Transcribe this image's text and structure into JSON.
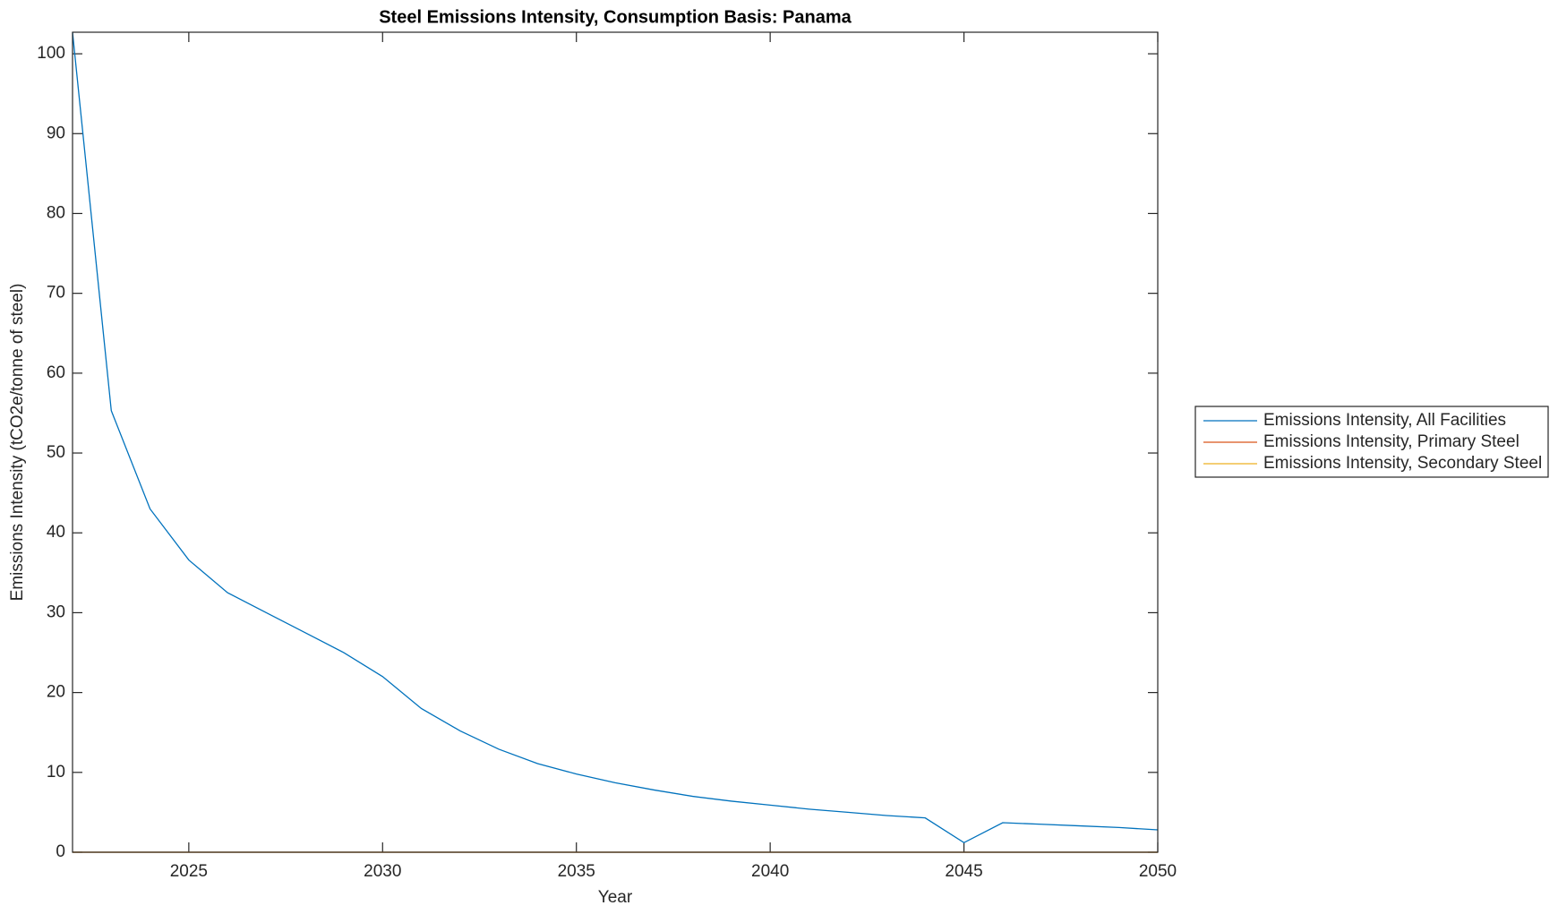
{
  "chart_data": {
    "type": "line",
    "title": "Steel Emissions Intensity, Consumption Basis: Panama",
    "x_label": "Year",
    "y_label": "Emissions Intensity (tCO2e/tonne of steel)",
    "x": [
      2022,
      2023,
      2024,
      2025,
      2026,
      2027,
      2028,
      2029,
      2030,
      2031,
      2032,
      2033,
      2034,
      2035,
      2036,
      2037,
      2038,
      2039,
      2040,
      2041,
      2042,
      2043,
      2044,
      2045,
      2046,
      2047,
      2048,
      2049,
      2050
    ],
    "series": [
      {
        "name": "Emissions Intensity, All Facilities",
        "color": "#0072bd",
        "values": [
          102.7,
          55.3,
          43,
          36.6,
          32.5,
          30,
          27.5,
          25,
          22,
          18,
          15.2,
          12.9,
          11.1,
          9.8,
          8.7,
          7.8,
          7,
          6.4,
          5.9,
          5.4,
          5,
          4.6,
          4.3,
          1.2,
          3.7,
          3.5,
          3.3,
          3.1,
          2.8
        ]
      },
      {
        "name": "Emissions Intensity, Primary Steel",
        "color": "#d95319",
        "values": [
          0,
          0,
          0,
          0,
          0,
          0,
          0,
          0,
          0,
          0,
          0,
          0,
          0,
          0,
          0,
          0,
          0,
          0,
          0,
          0,
          0,
          0,
          0,
          0,
          0,
          0,
          0,
          0,
          0
        ]
      },
      {
        "name": "Emissions Intensity, Secondary Steel",
        "color": "#edb120",
        "values": [
          0,
          0,
          0,
          0,
          0,
          0,
          0,
          0,
          0,
          0,
          0,
          0,
          0,
          0,
          0,
          0,
          0,
          0,
          0,
          0,
          0,
          0,
          0,
          0,
          0,
          0,
          0,
          0,
          0
        ]
      }
    ],
    "xlim": [
      2022,
      2050
    ],
    "xticks": [
      2025,
      2030,
      2035,
      2040,
      2045,
      2050
    ],
    "ylim": [
      0,
      102.7
    ],
    "yticks": [
      0,
      10,
      20,
      30,
      40,
      50,
      60,
      70,
      80,
      90,
      100
    ],
    "legend": "outside-right"
  }
}
